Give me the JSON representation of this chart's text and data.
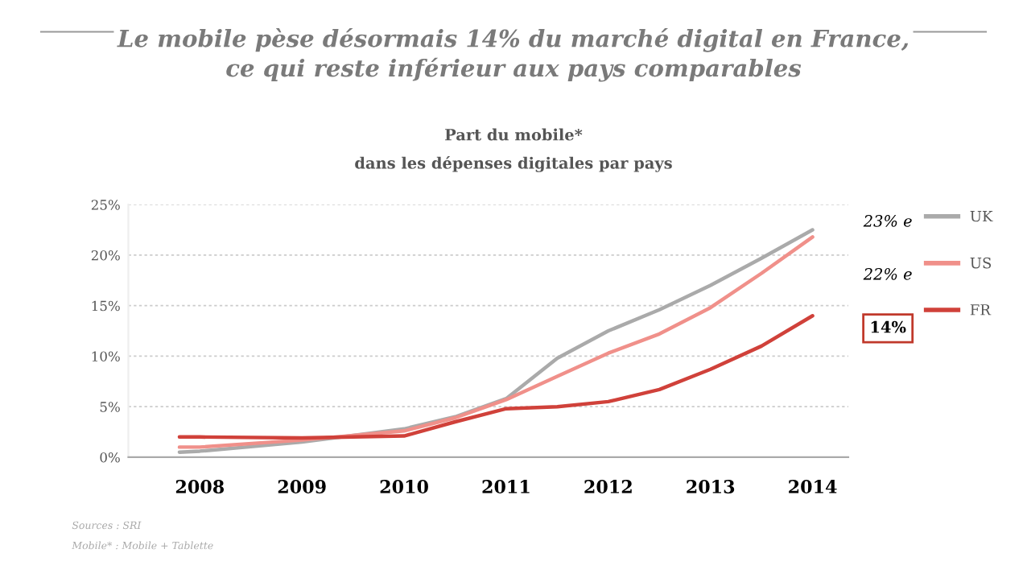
{
  "chart_data": {
    "type": "line",
    "title": "Le mobile pèse désormais 14% du marché digital en France,\nce qui reste inférieur aux pays comparables",
    "subtitle": "Part du mobile*\ndans les dépenses digitales par pays",
    "xlim": [
      2007.3,
      2014.35
    ],
    "xticks": [
      2008,
      2009,
      2010,
      2011,
      2012,
      2013,
      2014
    ],
    "ylim": [
      0,
      25
    ],
    "yticks": [
      {
        "value": 0,
        "label": "0%"
      },
      {
        "value": 5,
        "label": "5%"
      },
      {
        "value": 10,
        "label": "10%"
      },
      {
        "value": 15,
        "label": "15%"
      },
      {
        "value": 20,
        "label": "20%"
      },
      {
        "value": 25,
        "label": "25%"
      }
    ],
    "grid": "y",
    "legend": "right",
    "marker": "none",
    "line_style": "solid",
    "series": [
      {
        "name": "UK",
        "color": "#aaaaaa",
        "x": [
          2007.8,
          2008,
          2009,
          2010,
          2010.5,
          2011,
          2011.5,
          2012,
          2012.5,
          2013,
          2013.5,
          2014
        ],
        "values": [
          0.5,
          0.6,
          1.5,
          2.8,
          4.0,
          5.8,
          9.8,
          12.5,
          14.6,
          17.0,
          19.7,
          22.5
        ]
      },
      {
        "name": "US",
        "color": "#f0908a",
        "x": [
          2007.8,
          2008,
          2009,
          2010,
          2010.5,
          2011,
          2011.5,
          2012,
          2012.5,
          2013,
          2013.5,
          2014
        ],
        "values": [
          1.0,
          1.0,
          1.7,
          2.6,
          3.9,
          5.7,
          8.0,
          10.3,
          12.2,
          14.8,
          18.2,
          21.8
        ]
      },
      {
        "name": "FR",
        "color": "#d0413a",
        "x": [
          2007.8,
          2008,
          2009,
          2010,
          2010.5,
          2011,
          2011.5,
          2012,
          2012.5,
          2013,
          2013.5,
          2014
        ],
        "values": [
          2.0,
          2.0,
          1.9,
          2.1,
          3.5,
          4.8,
          5.0,
          5.5,
          6.7,
          8.7,
          11.0,
          14.0
        ]
      }
    ],
    "annotations": [
      "23% e",
      "22% e",
      "14%",
      "Sources : SRI",
      "Mobile* : Mobile + Tablette"
    ]
  }
}
